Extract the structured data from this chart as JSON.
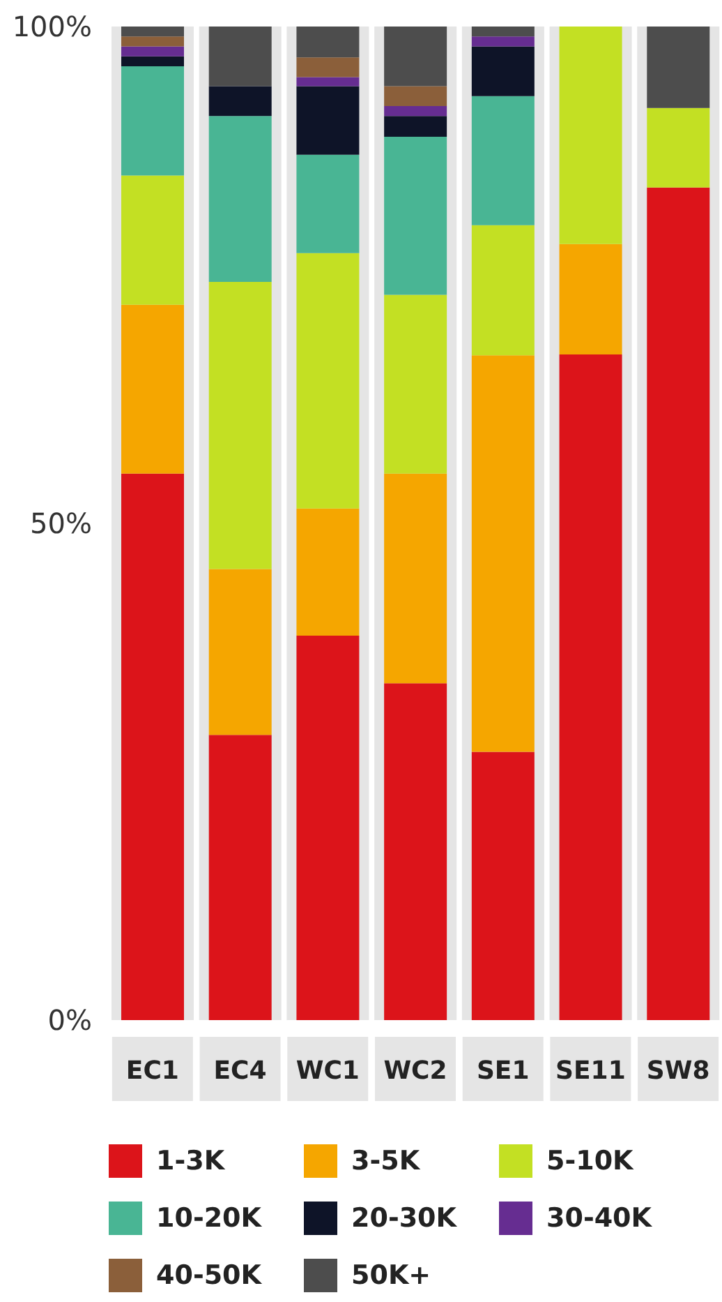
{
  "chart_data": {
    "type": "bar",
    "stacked": true,
    "categories": [
      "EC1",
      "EC4",
      "WC1",
      "WC2",
      "SE1",
      "SE11",
      "SW8"
    ],
    "series": [
      {
        "name": "1-3K",
        "color": "#dc141a",
        "values": [
          55,
          28.7,
          38.7,
          33.9,
          27,
          67,
          83.8
        ]
      },
      {
        "name": "3-5K",
        "color": "#f5a600",
        "values": [
          17,
          16.7,
          12.8,
          21.1,
          39.9,
          11.1,
          0
        ]
      },
      {
        "name": "5-10K",
        "color": "#c3e023",
        "values": [
          13,
          28.9,
          25.7,
          18,
          13.1,
          21.9,
          8
        ]
      },
      {
        "name": "10-20K",
        "color": "#49b594",
        "values": [
          11,
          16.7,
          9.9,
          15.9,
          13,
          0,
          0
        ]
      },
      {
        "name": "20-30K",
        "color": "#0e1428",
        "values": [
          1,
          3,
          6.9,
          2.1,
          5,
          0,
          0
        ]
      },
      {
        "name": "30-40K",
        "color": "#662d91",
        "values": [
          1,
          0,
          0.9,
          1,
          1,
          0,
          0
        ]
      },
      {
        "name": "40-50K",
        "color": "#8b5f3a",
        "values": [
          1,
          0,
          2,
          2,
          0,
          0,
          0
        ]
      },
      {
        "name": "50K+",
        "color": "#4d4d4d",
        "values": [
          1,
          6,
          3.1,
          6,
          1,
          0,
          8.2
        ]
      }
    ],
    "ylim": [
      0,
      100
    ],
    "yticks": [
      {
        "value": 0,
        "label": "0%"
      },
      {
        "value": 50,
        "label": "50%"
      },
      {
        "value": 100,
        "label": "100%"
      }
    ],
    "grid": false,
    "legend": "bottom"
  }
}
